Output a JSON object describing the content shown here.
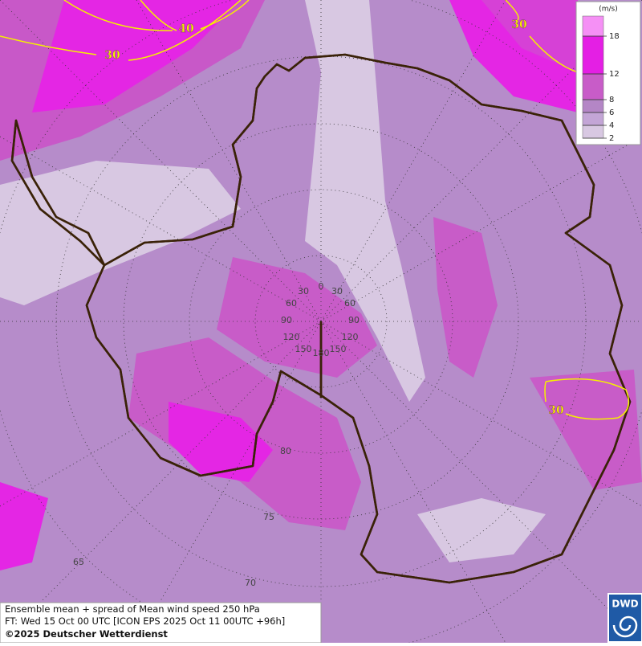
{
  "legend": {
    "unit": "(m/s)",
    "levels": [
      2,
      4,
      6,
      8,
      12,
      18
    ],
    "colors": [
      "#d8c8e2",
      "#c3a5d6",
      "#b486c6",
      "#c85cc8",
      "#e41fe4",
      "#f590f5"
    ]
  },
  "contour_labels": [
    "40",
    "30",
    "30",
    "30"
  ],
  "longitude_labels": [
    "0",
    "30",
    "60",
    "90",
    "120",
    "150",
    "180",
    "150",
    "120",
    "90",
    "60",
    "30"
  ],
  "latitude_labels": [
    "80",
    "75",
    "70",
    "65"
  ],
  "footer": {
    "line1": "Ensemble mean + spread of Mean wind speed 250 hPa",
    "line2": "FT: Wed 15 Oct 00 UTC [ICON EPS 2025 Oct 11 00UTC +96h]",
    "line3": "©2025 Deutscher Wetterdienst"
  },
  "logo": "DWD"
}
